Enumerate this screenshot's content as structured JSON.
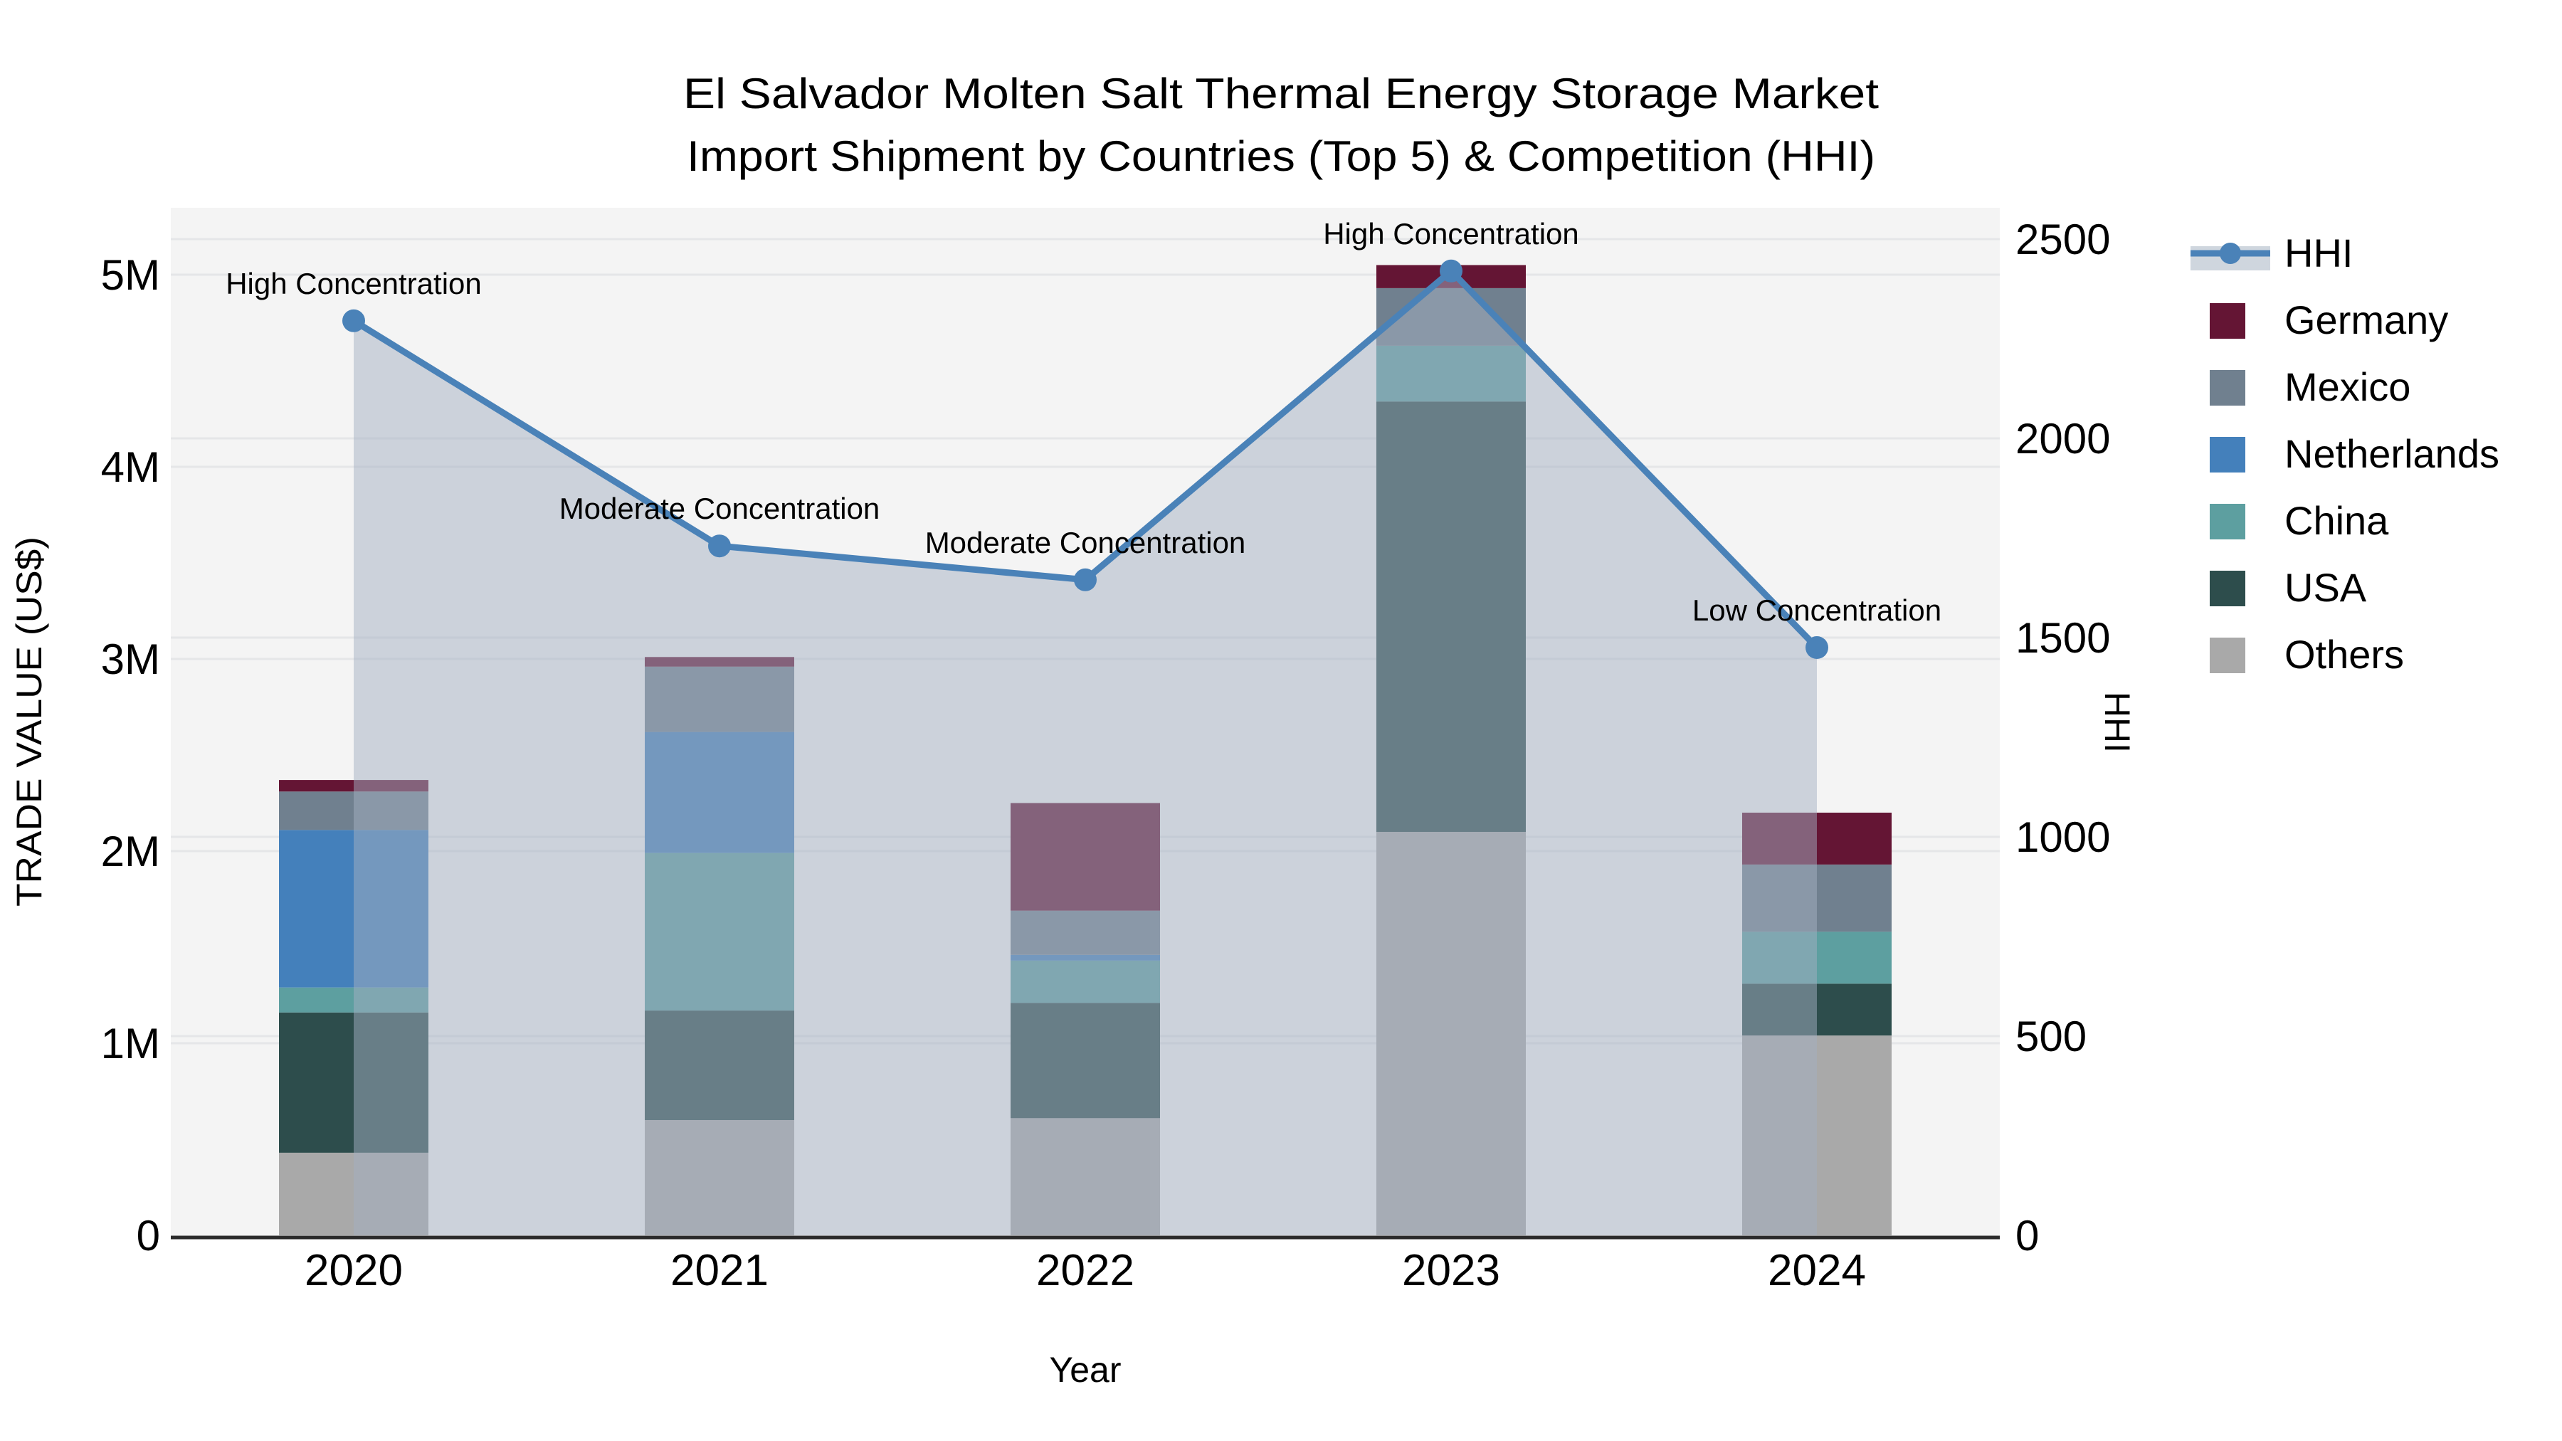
{
  "title": {
    "line1": "El Salvador Molten Salt Thermal Energy Storage Market",
    "line2": "Import Shipment by Countries (Top 5) & Competition (HHI)"
  },
  "axes": {
    "x": {
      "label": "Year",
      "tick_labels": [
        "2020",
        "2021",
        "2022",
        "2023",
        "2024"
      ]
    },
    "y_left": {
      "label": "TRADE VALUE (US$)",
      "tick_labels": [
        "0",
        "1M",
        "2M",
        "3M",
        "4M",
        "5M"
      ],
      "tick_values_musd": [
        0,
        1,
        2,
        3,
        4,
        5
      ]
    },
    "y_right": {
      "label": "HHI",
      "tick_labels": [
        "0",
        "500",
        "1000",
        "1500",
        "2000",
        "2500"
      ],
      "tick_values": [
        0,
        500,
        1000,
        1500,
        2000,
        2500
      ]
    }
  },
  "chart_data": {
    "type": "bar+line",
    "categories": [
      "2020",
      "2021",
      "2022",
      "2023",
      "2024"
    ],
    "bar_unit": "million US$ (stacked, left axis)",
    "stack_order_bottom_to_top": [
      "Others",
      "USA",
      "China",
      "Netherlands",
      "Mexico",
      "Germany"
    ],
    "series": [
      {
        "name": "Others",
        "color": "#a9a9a9",
        "values": [
          0.43,
          0.6,
          0.61,
          2.1,
          1.04
        ]
      },
      {
        "name": "USA",
        "color": "#2d4d4c",
        "values": [
          0.73,
          0.57,
          0.6,
          2.24,
          0.27
        ]
      },
      {
        "name": "China",
        "color": "#5d9fa0",
        "values": [
          0.13,
          0.82,
          0.22,
          0.29,
          0.27
        ]
      },
      {
        "name": "Netherlands",
        "color": "#4480bb",
        "values": [
          0.82,
          0.63,
          0.03,
          0.0,
          0.0
        ]
      },
      {
        "name": "Mexico",
        "color": "#70808f",
        "values": [
          0.2,
          0.34,
          0.23,
          0.3,
          0.35
        ]
      },
      {
        "name": "Germany",
        "color": "#641534",
        "values": [
          0.06,
          0.05,
          0.56,
          0.12,
          0.27
        ]
      }
    ],
    "line": {
      "name": "HHI",
      "axis": "right",
      "color": "#4a82b8",
      "area_fill": "rgba(164,176,193,0.5)",
      "values": [
        2295,
        1730,
        1645,
        2420,
        1475
      ],
      "annotations": [
        "High Concentration",
        "Moderate Concentration",
        "Moderate Concentration",
        "High Concentration",
        "Low Concentration"
      ]
    },
    "ylim_left_musd": [
      0,
      5.35
    ],
    "ylim_right": [
      0,
      2580
    ],
    "grid": true,
    "legend_position": "right"
  },
  "legend": {
    "items": [
      {
        "label": "HHI",
        "swatch": "line"
      },
      {
        "label": "Germany",
        "swatch": "#641534"
      },
      {
        "label": "Mexico",
        "swatch": "#70808f"
      },
      {
        "label": "Netherlands",
        "swatch": "#4480bb"
      },
      {
        "label": "China",
        "swatch": "#5d9fa0"
      },
      {
        "label": "USA",
        "swatch": "#2d4d4c"
      },
      {
        "label": "Others",
        "swatch": "#a9a9a9"
      }
    ]
  },
  "colors": {
    "plot_bg": "#f4f4f4",
    "grid": "#e5e6e8",
    "axis_line": "#2b2b2b",
    "hhi_line": "#4a82b8",
    "area_overlay": "rgba(164,176,193,0.5)",
    "legend_band": "#cfd6de"
  }
}
